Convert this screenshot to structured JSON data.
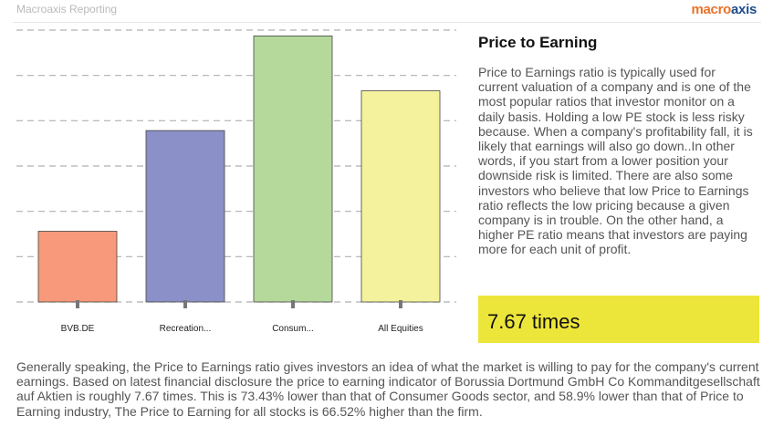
{
  "header": {
    "report_label": "Macroaxis Reporting",
    "logo": {
      "part1": "macr",
      "part2": "o",
      "part3": "axis"
    }
  },
  "chart_data": {
    "type": "bar",
    "categories": [
      "BVB.DE",
      "Recreation...",
      "Consum...",
      "All Equities"
    ],
    "values": [
      7.67,
      18.6,
      28.87,
      22.91
    ],
    "colors": [
      "#f7997a",
      "#8b90c8",
      "#b4d99a",
      "#f4f29c"
    ],
    "ylim": [
      0,
      29.5
    ],
    "grid": true,
    "gridlines": 7,
    "title": "",
    "xlabel": "",
    "ylabel": ""
  },
  "side": {
    "title": "Price to Earning",
    "description": "Price to Earnings ratio is typically used for current valuation of a company and is one of the most popular ratios that investor monitor on a daily basis. Holding a low PE stock is less risky because. When a company's profitability fall, it is likely that earnings will also go down..In other words, if you start from a lower position your downside risk is limited. There are also some investors who believe that low Price to Earnings ratio reflects the low pricing because a given company is in trouble. On the other hand, a higher PE ratio means that investors are paying more for each unit of profit.",
    "value": "7.67 times",
    "value_color": "#ede63a"
  },
  "summary": "Generally speaking, the Price to Earnings ratio gives investors an idea of what the market is willing to pay for the company's current earnings. Based on  latest financial disclosure  the price to earning indicator of Borussia Dortmund GmbH   Co Kommanditgesellschaft auf Aktien is roughly 7.67 times. This is 73.43% lower than that of Consumer Goods sector, and 58.9% lower than that of Price to Earning industry, The Price to Earning for all stocks is 66.52% higher than the firm."
}
